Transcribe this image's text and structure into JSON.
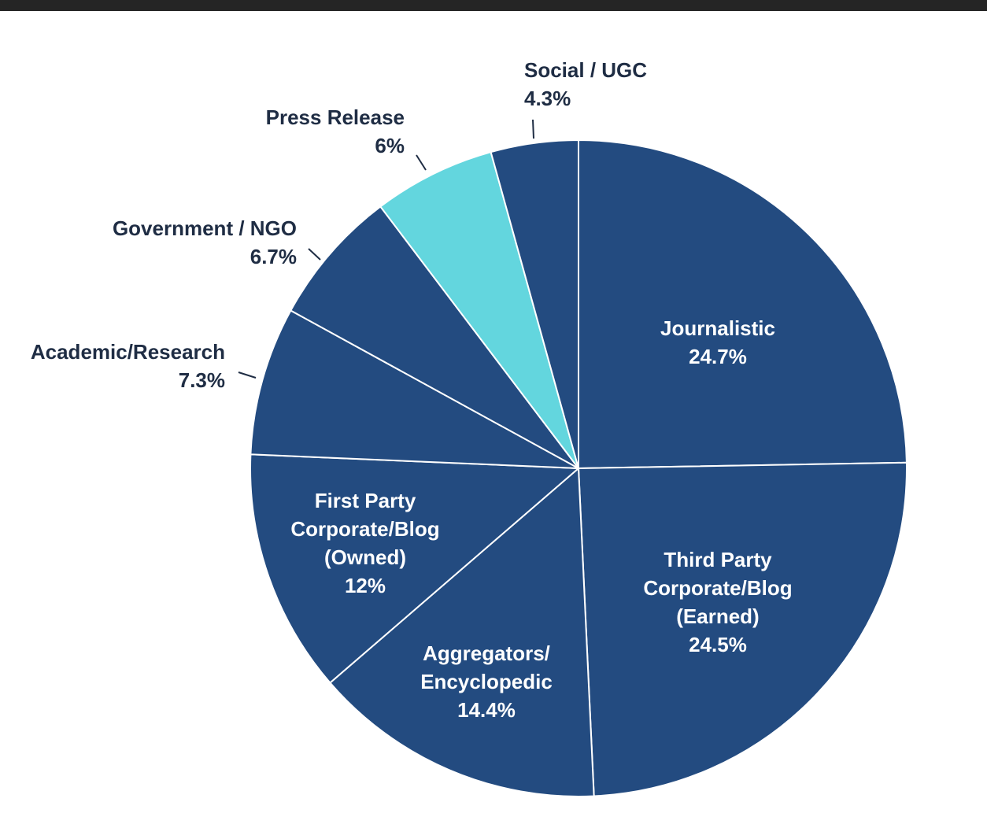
{
  "chart_data": {
    "type": "pie",
    "title": "",
    "start_angle_deg": 0,
    "direction": "clockwise",
    "slices": [
      {
        "label": [
          "Journalistic"
        ],
        "value": 24.7,
        "value_label": "24.7%",
        "color": "#234b80",
        "label_position": "inside"
      },
      {
        "label": [
          "Third Party",
          "Corporate/Blog",
          "(Earned)"
        ],
        "value": 24.5,
        "value_label": "24.5%",
        "color": "#234b80",
        "label_position": "inside"
      },
      {
        "label": [
          "Aggregators/",
          "Encyclopedic"
        ],
        "value": 14.4,
        "value_label": "14.4%",
        "color": "#234b80",
        "label_position": "inside"
      },
      {
        "label": [
          "First Party",
          "Corporate/Blog",
          "(Owned)"
        ],
        "value": 12,
        "value_label": "12%",
        "color": "#234b80",
        "label_position": "inside"
      },
      {
        "label": [
          "Academic/Research"
        ],
        "value": 7.3,
        "value_label": "7.3%",
        "color": "#234b80",
        "label_position": "outside"
      },
      {
        "label": [
          "Government / NGO"
        ],
        "value": 6.7,
        "value_label": "6.7%",
        "color": "#234b80",
        "label_position": "outside"
      },
      {
        "label": [
          "Press Release"
        ],
        "value": 6,
        "value_label": "6%",
        "color": "#63d6de",
        "label_position": "outside"
      },
      {
        "label": [
          "Social / UGC"
        ],
        "value": 4.3,
        "value_label": "4.3%",
        "color": "#234b80",
        "label_position": "outside"
      }
    ]
  }
}
